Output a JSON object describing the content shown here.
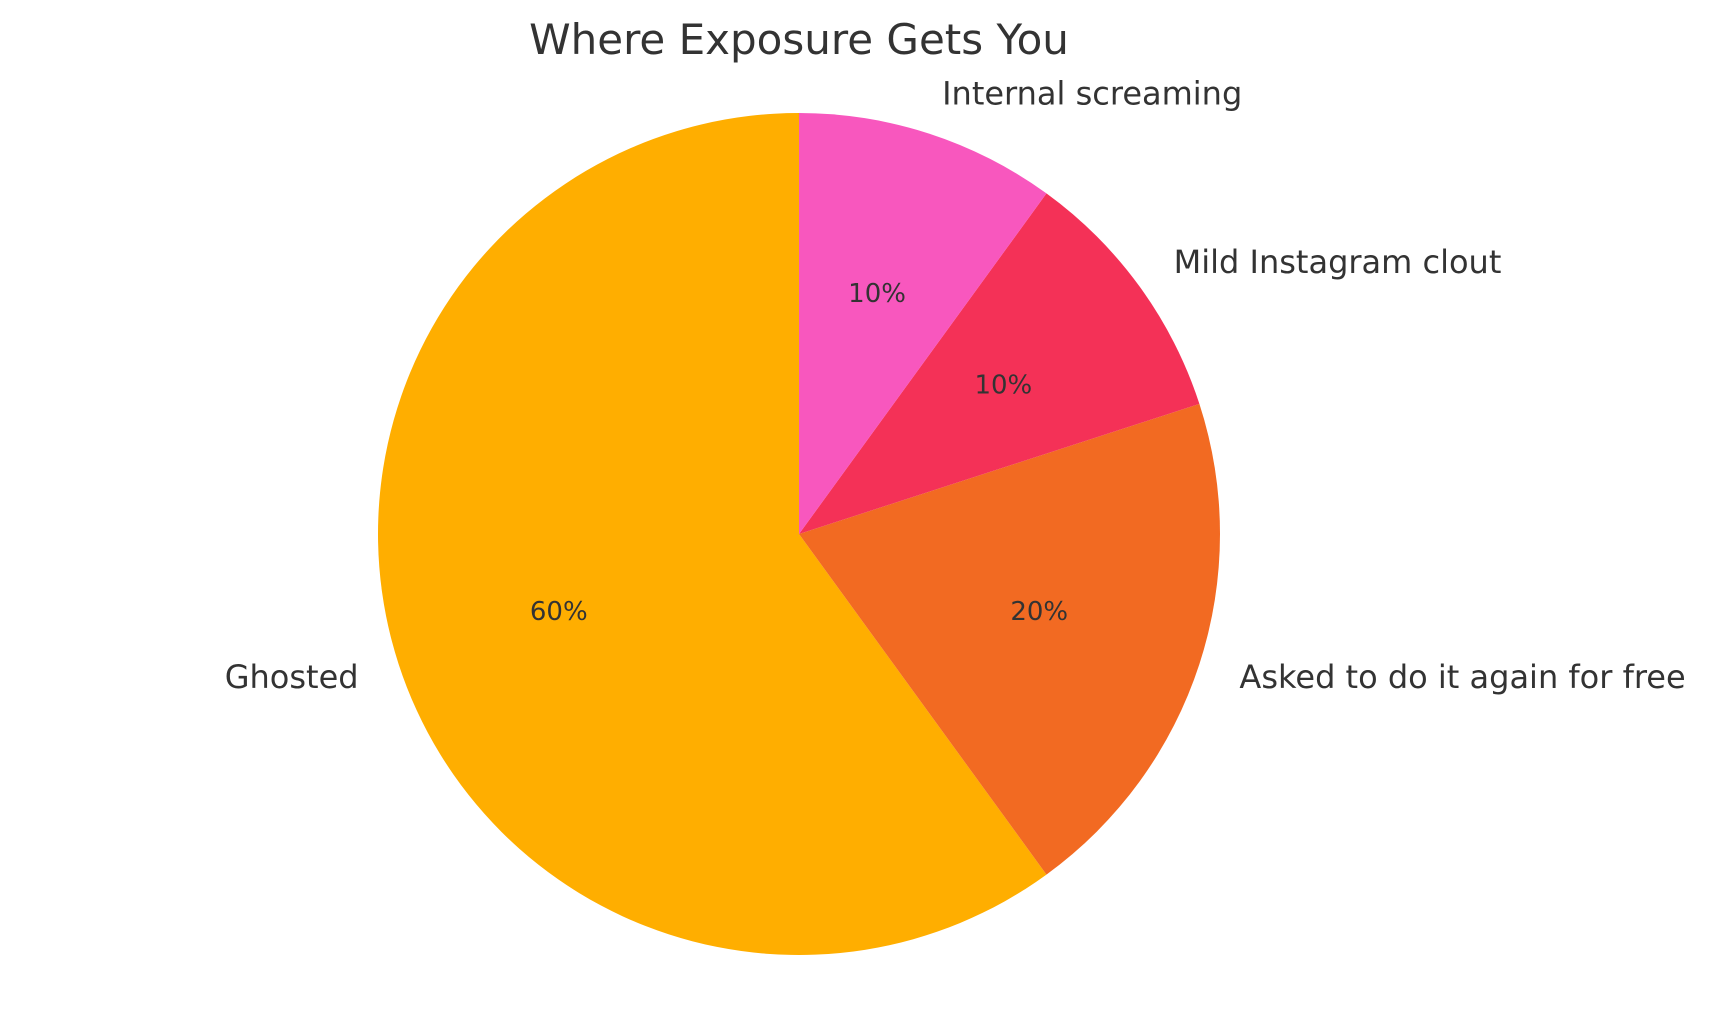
{
  "chart_data": {
    "type": "pie",
    "title": "Where Exposure Gets You",
    "start_angle_deg": 90,
    "direction": "counterclockwise",
    "slices": [
      {
        "label": "Ghosted",
        "value": 60,
        "pct_label": "60%",
        "color": "#FFAE00"
      },
      {
        "label": "Asked to do it again for free",
        "value": 20,
        "pct_label": "20%",
        "color": "#F26A22"
      },
      {
        "label": "Mild Instagram clout",
        "value": 10,
        "pct_label": "10%",
        "color": "#F43157"
      },
      {
        "label": "Internal screaming",
        "value": 10,
        "pct_label": "10%",
        "color": "#F857BE"
      }
    ]
  }
}
